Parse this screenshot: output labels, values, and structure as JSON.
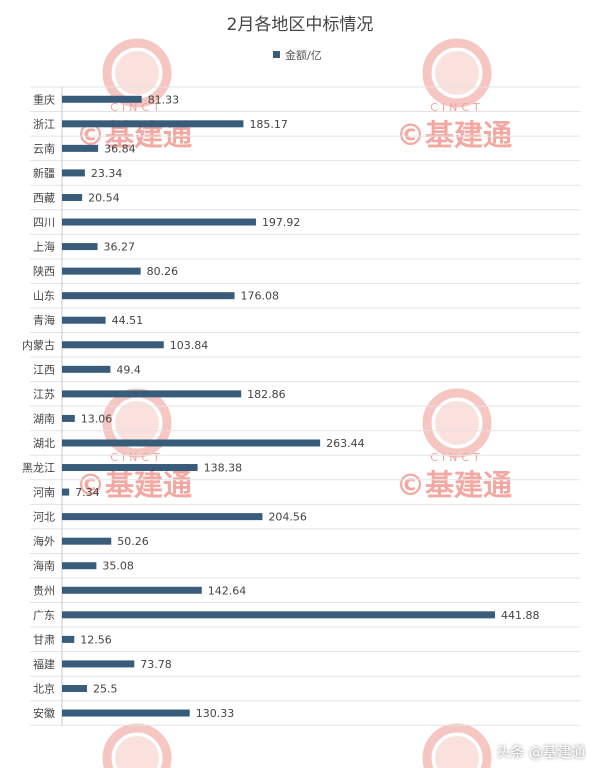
{
  "chart_data": {
    "type": "bar",
    "orientation": "horizontal",
    "title": "2月各地区中标情况",
    "legend": "top-center",
    "grid": true,
    "bar_color": "#385c7a",
    "xlim": [
      0,
      450
    ],
    "series": [
      {
        "name": "金额/亿",
        "values": [
          81.33,
          185.17,
          36.84,
          23.34,
          20.54,
          197.92,
          36.27,
          80.26,
          176.08,
          44.51,
          103.84,
          49.4,
          182.86,
          13.06,
          263.44,
          138.38,
          7.34,
          204.56,
          50.26,
          35.08,
          142.64,
          441.88,
          12.56,
          73.78,
          25.5,
          130.33
        ]
      }
    ],
    "categories": [
      "重庆",
      "浙江",
      "云南",
      "新疆",
      "西藏",
      "四川",
      "上海",
      "陕西",
      "山东",
      "青海",
      "内蒙古",
      "江西",
      "江苏",
      "湖南",
      "湖北",
      "黑龙江",
      "河南",
      "河北",
      "海外",
      "海南",
      "贵州",
      "广东",
      "甘肃",
      "福建",
      "北京",
      "安徽"
    ],
    "value_labels": [
      "81.33",
      "185.17",
      "36.84",
      "23.34",
      "20.54",
      "197.92",
      "36.27",
      "80.26",
      "176.08",
      "44.51",
      "103.84",
      "49.4",
      "182.86",
      "13.06",
      "263.44",
      "138.38",
      "7.34",
      "204.56",
      "50.26",
      "35.08",
      "142.64",
      "441.88",
      "12.56",
      "73.78",
      "25.5",
      "130.33"
    ]
  },
  "watermark": {
    "cinct": "CINCT",
    "brand": "©基建通"
  },
  "footer": {
    "credit": "头条 @基建通"
  }
}
